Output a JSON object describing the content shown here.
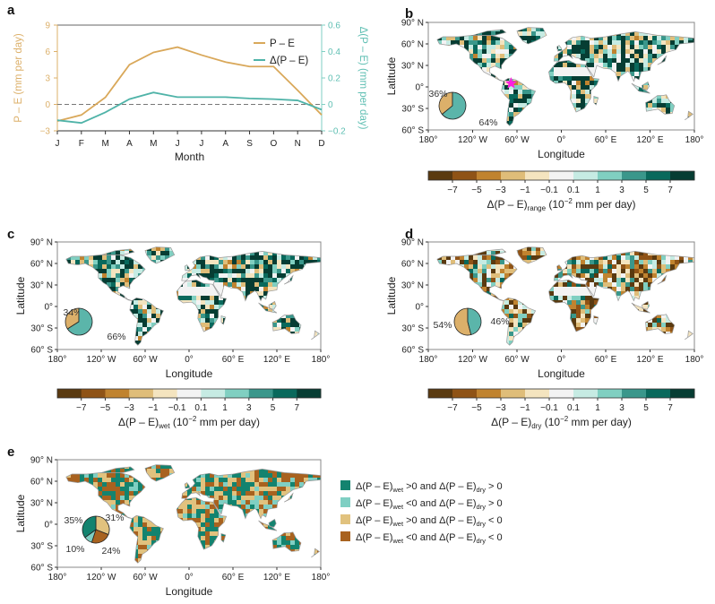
{
  "chart_data": [
    {
      "panel": "a",
      "type": "line",
      "title": "",
      "xlabel": "Month",
      "ylabel": "P – E (mm per day)",
      "ylabel_right": "Δ(P – E) (mm per day)",
      "categories": [
        "J",
        "F",
        "M",
        "A",
        "M",
        "J",
        "J",
        "A",
        "S",
        "O",
        "N",
        "D"
      ],
      "ylim": [
        -3,
        9
      ],
      "yticks": [
        -3,
        0,
        3,
        6,
        9
      ],
      "ylim_right": [
        -0.2,
        0.6
      ],
      "yticks_right": [
        -0.2,
        0,
        0.2,
        0.4,
        0.6
      ],
      "yticks_right_labels": [
        "−0.2",
        "0",
        "0.2",
        "0.4",
        "0.6"
      ],
      "yticks_labels": [
        "−3",
        "0",
        "3",
        "6",
        "9"
      ],
      "zero_line": "dashed",
      "legend": "top-right",
      "series": [
        {
          "name": "P – E",
          "axis": "left",
          "color": "#d9a85a",
          "values": [
            -1.9,
            -1.2,
            0.8,
            4.5,
            5.9,
            6.5,
            5.6,
            4.8,
            4.3,
            4.3,
            1.6,
            -1.2
          ]
        },
        {
          "name": "Δ(P – E)",
          "axis": "right",
          "color": "#4fb3a8",
          "values": [
            -0.12,
            -0.14,
            -0.06,
            0.04,
            0.09,
            0.055,
            0.055,
            0.055,
            0.045,
            0.04,
            0.03,
            -0.04
          ]
        }
      ]
    },
    {
      "panel": "b",
      "type": "heatmap",
      "xlabel": "Longitude",
      "ylabel": "Latitude",
      "xticks": [
        "180°",
        "120° W",
        "60° W",
        "0°",
        "60° E",
        "120° E",
        "180°"
      ],
      "yticks": [
        "90° N",
        "60° N",
        "30° N",
        "0°",
        "30° S",
        "60° S"
      ],
      "colorbar_label_main": "Δ(P – E)",
      "colorbar_label_sub": "range",
      "colorbar_label_tail": " (10",
      "colorbar_label_exp": "−2",
      "colorbar_label_unit": " mm per day)",
      "pie": [
        {
          "label": "36%",
          "value": 36,
          "color": "#dcb06a"
        },
        {
          "label": "64%",
          "value": 64,
          "color": "#5bb5aa"
        }
      ],
      "marker": "magenta-star"
    },
    {
      "panel": "c",
      "type": "heatmap",
      "xlabel": "Longitude",
      "ylabel": "Latitude",
      "xticks": [
        "180°",
        "120° W",
        "60° W",
        "0°",
        "60° E",
        "120° E",
        "180°"
      ],
      "yticks": [
        "90° N",
        "60° N",
        "30° N",
        "0°",
        "30° S",
        "60° S"
      ],
      "colorbar_label_main": "Δ(P – E)",
      "colorbar_label_sub": "wet",
      "colorbar_label_tail": " (10",
      "colorbar_label_exp": "−2",
      "colorbar_label_unit": " mm per day)",
      "pie": [
        {
          "label": "34%",
          "value": 34,
          "color": "#dcb06a"
        },
        {
          "label": "66%",
          "value": 66,
          "color": "#5bb5aa"
        }
      ]
    },
    {
      "panel": "d",
      "type": "heatmap",
      "xlabel": "Longitude",
      "ylabel": "Latitude",
      "xticks": [
        "180°",
        "120° W",
        "60° W",
        "0°",
        "60° E",
        "120° E",
        "180°"
      ],
      "yticks": [
        "90° N",
        "60° N",
        "30° N",
        "0°",
        "30° S",
        "60° S"
      ],
      "colorbar_label_main": "Δ(P – E)",
      "colorbar_label_sub": "dry",
      "colorbar_label_tail": " (10",
      "colorbar_label_exp": "−2",
      "colorbar_label_unit": " mm per day)",
      "pie": [
        {
          "label": "54%",
          "value": 54,
          "color": "#dcb06a"
        },
        {
          "label": "46%",
          "value": 46,
          "color": "#5bb5aa"
        }
      ]
    },
    {
      "panel": "e",
      "type": "heatmap",
      "xlabel": "Longitude",
      "ylabel": "Latitude",
      "xticks": [
        "180°",
        "120° W",
        "60° W",
        "0°",
        "60° E",
        "120° E",
        "180°"
      ],
      "yticks": [
        "90° N",
        "60° N",
        "30° N",
        "0°",
        "30° S",
        "60° S"
      ],
      "pie": [
        {
          "label": "35%",
          "value": 35,
          "color": "#13836f"
        },
        {
          "label": "10%",
          "value": 10,
          "color": "#7fcfc3"
        },
        {
          "label": "24%",
          "value": 24,
          "color": "#a8621f"
        },
        {
          "label": "31%",
          "value": 31,
          "color": "#e1c27e"
        }
      ],
      "legend": [
        {
          "color": "#13836f",
          "a": "Δ(P – E)",
          "asub": "wet",
          "amid": " >0 and ",
          "b": "Δ(P – E)",
          "bsub": "dry",
          "bend": " > 0"
        },
        {
          "color": "#7fcfc3",
          "a": "Δ(P – E)",
          "asub": "wet",
          "amid": " <0 and ",
          "b": "Δ(P – E)",
          "bsub": "dry",
          "bend": " > 0"
        },
        {
          "color": "#e1c27e",
          "a": "Δ(P – E)",
          "asub": "wet",
          "amid": " >0 and ",
          "b": "Δ(P – E)",
          "bsub": "dry",
          "bend": " < 0"
        },
        {
          "color": "#a8621f",
          "a": "Δ(P – E)",
          "asub": "wet",
          "amid": " <0 and ",
          "b": "Δ(P – E)",
          "bsub": "dry",
          "bend": " < 0"
        }
      ]
    }
  ],
  "panel_labels": [
    "a",
    "b",
    "c",
    "d",
    "e"
  ],
  "colorbar": {
    "ticks": [
      "−7",
      "−5",
      "−3",
      "−1",
      "−0.1",
      "0.1",
      "1",
      "3",
      "5",
      "7"
    ],
    "colors": [
      "#5a3a10",
      "#8f5316",
      "#c0832f",
      "#dfbd79",
      "#f4e4bf",
      "#f3f3f3",
      "#c6ebe3",
      "#80cfc1",
      "#3a978b",
      "#09695c",
      "#063d33"
    ]
  }
}
